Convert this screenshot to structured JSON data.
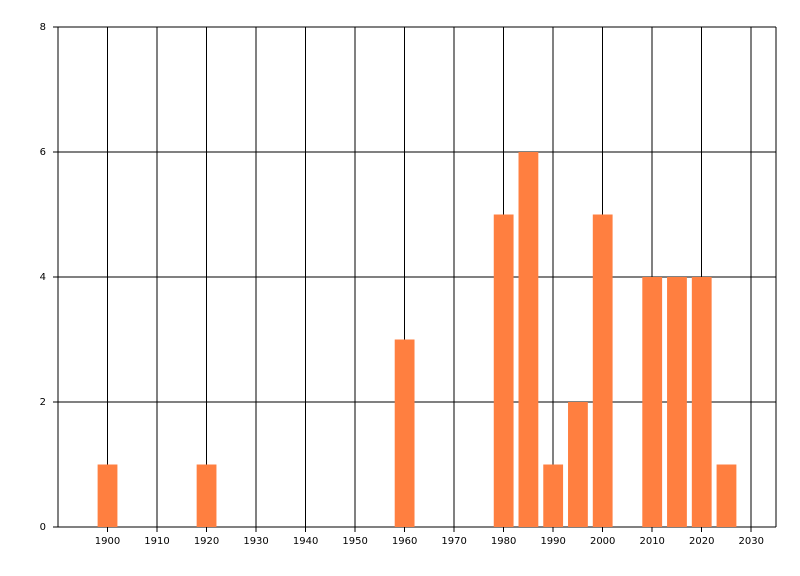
{
  "chart_data": {
    "type": "bar",
    "x": [
      1900,
      1920,
      1960,
      1980,
      1985,
      1990,
      1995,
      2000,
      2010,
      2015,
      2020,
      2025
    ],
    "values": [
      1,
      1,
      3,
      5,
      6,
      1,
      2,
      5,
      4,
      4,
      4,
      1
    ],
    "color": "#ff7f40",
    "xlim": [
      1890,
      2035
    ],
    "xticks": [
      1900,
      1910,
      1920,
      1930,
      1940,
      1950,
      1960,
      1970,
      1980,
      1990,
      2000,
      2010,
      2020,
      2030
    ],
    "ylim": [
      0,
      8
    ],
    "yticks": [
      0,
      2,
      4,
      6,
      8
    ],
    "grid": true
  }
}
